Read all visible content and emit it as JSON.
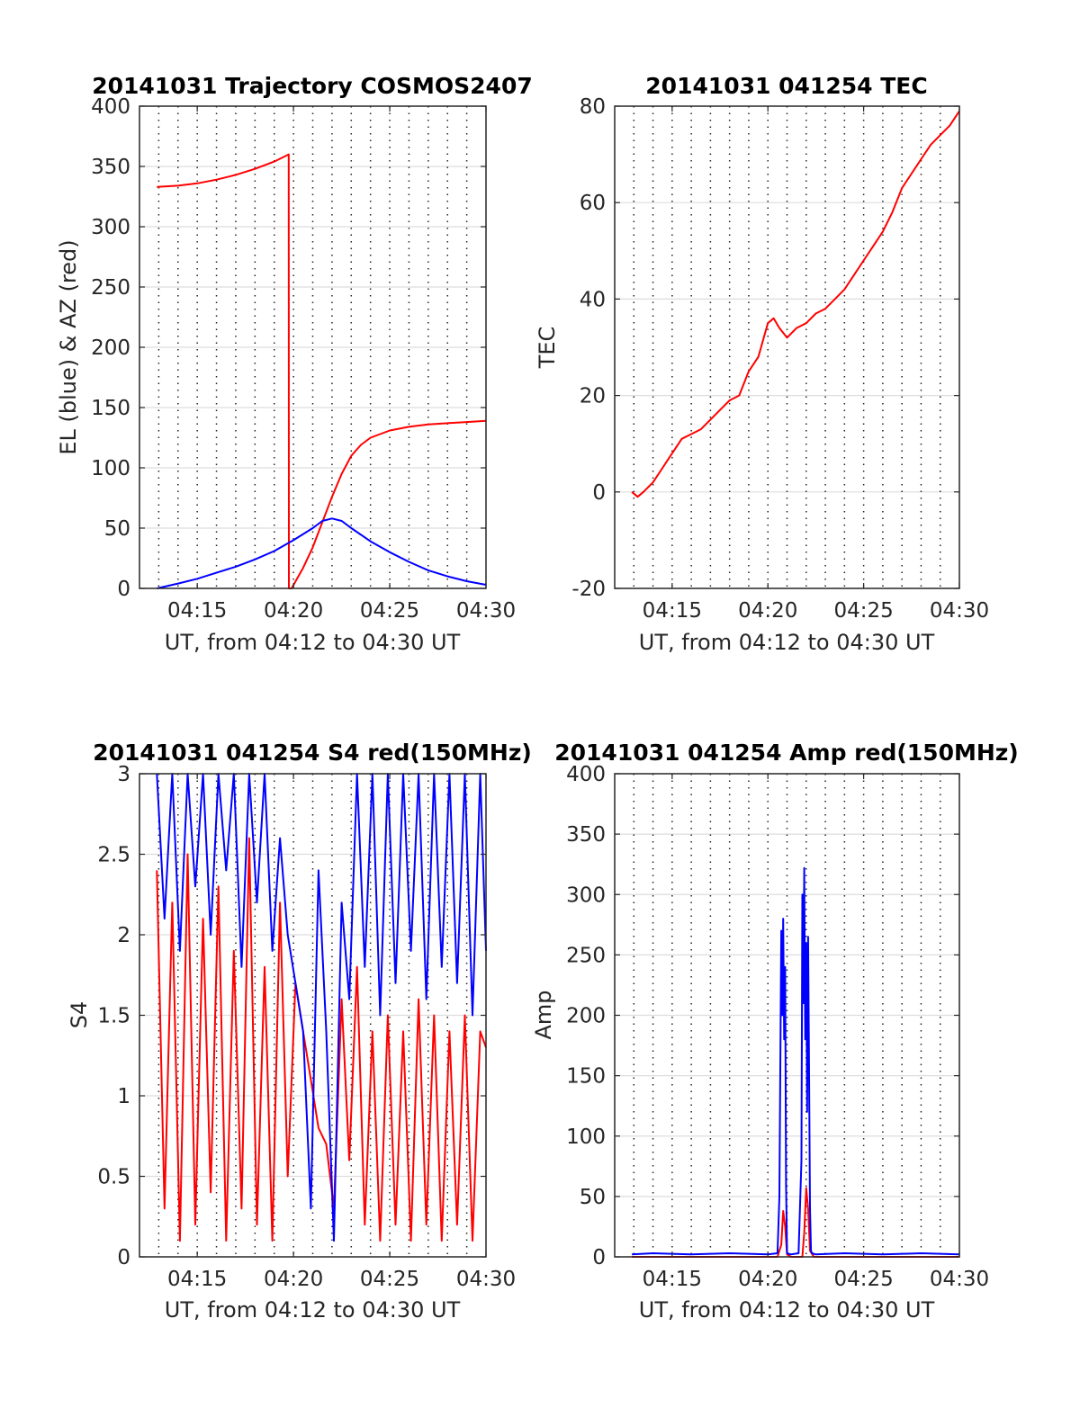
{
  "figure": {
    "background": "#ffffff",
    "line_colors": {
      "red": "#ff0000",
      "blue": "#0000ff"
    }
  },
  "chart_data": [
    {
      "id": "trajectory",
      "type": "line",
      "title": "20141031 Trajectory COSMOS2407",
      "xlabel": "UT, from 04:12 to 04:30 UT",
      "ylabel": "EL (blue) & AZ (red)",
      "x_unit": "minutes after 04:00 UT",
      "xlim": [
        12,
        30
      ],
      "ylim": [
        0,
        400
      ],
      "yticks": [
        0,
        50,
        100,
        150,
        200,
        250,
        300,
        350,
        400
      ],
      "xticks": [
        15,
        20,
        25,
        30
      ],
      "xtick_labels": [
        "04:15",
        "04:20",
        "04:25",
        "04:30"
      ],
      "vgrid_minutes": [
        13,
        14,
        15,
        16,
        17,
        18,
        19,
        20,
        21,
        22,
        23,
        24,
        25,
        26,
        27,
        28,
        29
      ],
      "series": [
        {
          "color": "#ff0000",
          "x": [
            12.9,
            14,
            15,
            16,
            17,
            18,
            19,
            19.75,
            19.76,
            19.9,
            20.5,
            21,
            21.5,
            22,
            22.5,
            23,
            23.5,
            24,
            25,
            26,
            27,
            28,
            29,
            30
          ],
          "y": [
            333,
            334,
            336,
            339,
            343,
            348,
            354,
            360,
            0,
            0,
            17,
            34,
            55,
            76,
            95,
            110,
            119,
            125,
            131,
            134,
            136,
            137,
            138,
            139
          ]
        },
        {
          "color": "#0000ff",
          "x": [
            12.9,
            14,
            15,
            16,
            17,
            18,
            19,
            20,
            21,
            21.5,
            22,
            22.5,
            23,
            24,
            25,
            26,
            27,
            28,
            29,
            30
          ],
          "y": [
            0,
            4,
            8,
            13,
            18,
            24,
            31,
            40,
            50,
            56,
            58,
            56,
            50,
            39,
            30,
            22,
            15,
            10,
            6,
            3
          ]
        }
      ]
    },
    {
      "id": "tec",
      "type": "line",
      "title": "20141031 041254 TEC",
      "xlabel": "UT, from 04:12 to 04:30 UT",
      "ylabel": "TEC",
      "x_unit": "minutes after 04:00 UT",
      "xlim": [
        12,
        30
      ],
      "ylim": [
        -20,
        80
      ],
      "yticks": [
        -20,
        0,
        20,
        40,
        60,
        80
      ],
      "xticks": [
        15,
        20,
        25,
        30
      ],
      "xtick_labels": [
        "04:15",
        "04:20",
        "04:25",
        "04:30"
      ],
      "vgrid_minutes": [
        13,
        14,
        15,
        16,
        17,
        18,
        19,
        20,
        21,
        22,
        23,
        24,
        25,
        26,
        27,
        28,
        29
      ],
      "series": [
        {
          "color": "#ff0000",
          "x": [
            12.9,
            13.2,
            13.5,
            14,
            14.5,
            15,
            15.5,
            16,
            16.5,
            17,
            17.5,
            18,
            18.5,
            19,
            19.5,
            20,
            20.3,
            20.6,
            21,
            21.5,
            22,
            22.5,
            23,
            23.5,
            24,
            24.5,
            25,
            25.5,
            26,
            26.5,
            27,
            27.5,
            28,
            28.5,
            29,
            29.5,
            30
          ],
          "y": [
            0,
            -1,
            0,
            2,
            5,
            8,
            11,
            12,
            13,
            15,
            17,
            19,
            20,
            25,
            28,
            35,
            36,
            34,
            32,
            34,
            35,
            37,
            38,
            40,
            42,
            45,
            48,
            51,
            54,
            58,
            63,
            66,
            69,
            72,
            74,
            76,
            79
          ]
        }
      ]
    },
    {
      "id": "s4",
      "type": "line",
      "title": "20141031 041254 S4 red(150MHz)",
      "xlabel": "UT, from 04:12 to 04:30 UT",
      "ylabel": "S4",
      "x_unit": "minutes after 04:00 UT",
      "xlim": [
        12,
        30
      ],
      "ylim": [
        0,
        3
      ],
      "yticks": [
        0,
        0.5,
        1,
        1.5,
        2,
        2.5,
        3
      ],
      "ytick_labels": [
        "0",
        "0.5",
        "1",
        "1.5",
        "2",
        "2.5",
        "3"
      ],
      "xticks": [
        15,
        20,
        25,
        30
      ],
      "xtick_labels": [
        "04:15",
        "04:20",
        "04:25",
        "04:30"
      ],
      "vgrid_minutes": [
        13,
        14,
        15,
        16,
        17,
        18,
        19,
        20,
        21,
        22,
        23,
        24,
        25,
        26,
        27,
        28,
        29
      ],
      "series": [
        {
          "color": "#ff0000",
          "x": [
            12.9,
            13.3,
            13.7,
            14.1,
            14.5,
            14.9,
            15.3,
            15.7,
            16.1,
            16.5,
            16.9,
            17.3,
            17.7,
            18.1,
            18.5,
            18.9,
            19.3,
            19.7,
            20.1,
            20.5,
            20.9,
            21.3,
            21.7,
            22.1,
            22.5,
            22.9,
            23.3,
            23.7,
            24.1,
            24.5,
            24.9,
            25.3,
            25.7,
            26.1,
            26.5,
            26.9,
            27.3,
            27.7,
            28.1,
            28.5,
            28.9,
            29.3,
            29.7,
            30
          ],
          "y": [
            2.4,
            0.3,
            2.2,
            0.1,
            2.5,
            0.2,
            2.1,
            0.4,
            2.3,
            0.1,
            1.9,
            0.3,
            2.6,
            0.2,
            1.8,
            0.1,
            2.2,
            0.5,
            1.7,
            1.4,
            1.1,
            0.8,
            0.7,
            0.3,
            1.6,
            0.6,
            1.8,
            0.2,
            1.4,
            0.1,
            1.5,
            0.2,
            1.4,
            0.1,
            1.6,
            0.2,
            1.5,
            0.1,
            1.4,
            0.2,
            1.5,
            0.1,
            1.4,
            1.3
          ]
        },
        {
          "color": "#0000ff",
          "x": [
            12.9,
            13.3,
            13.7,
            14.1,
            14.5,
            14.9,
            15.3,
            15.7,
            16.1,
            16.5,
            16.9,
            17.3,
            17.7,
            18.1,
            18.5,
            18.9,
            19.3,
            19.7,
            20.1,
            20.5,
            20.9,
            21.3,
            21.7,
            22.1,
            22.5,
            22.9,
            23.3,
            23.7,
            24.1,
            24.5,
            24.9,
            25.3,
            25.7,
            26.1,
            26.5,
            26.9,
            27.3,
            27.7,
            28.1,
            28.5,
            28.9,
            29.3,
            29.7,
            30
          ],
          "y": [
            3,
            2.1,
            3,
            1.9,
            3,
            2.3,
            3,
            2.0,
            3,
            2.4,
            3,
            1.8,
            3,
            2.2,
            3,
            1.9,
            2.6,
            2.0,
            1.7,
            1.4,
            0.3,
            2.4,
            1.4,
            0.1,
            2.2,
            1.6,
            3,
            1.8,
            3,
            1.5,
            3,
            1.7,
            3,
            1.9,
            3,
            1.6,
            3,
            1.8,
            3,
            1.7,
            3,
            1.5,
            3,
            1.9
          ]
        }
      ]
    },
    {
      "id": "amp",
      "type": "line",
      "title": "20141031 041254 Amp red(150MHz)",
      "xlabel": "UT, from 04:12 to 04:30 UT",
      "ylabel": "Amp",
      "x_unit": "minutes after 04:00 UT",
      "xlim": [
        12,
        30
      ],
      "ylim": [
        0,
        400
      ],
      "yticks": [
        0,
        50,
        100,
        150,
        200,
        250,
        300,
        350,
        400
      ],
      "xticks": [
        15,
        20,
        25,
        30
      ],
      "xtick_labels": [
        "04:15",
        "04:20",
        "04:25",
        "04:30"
      ],
      "vgrid_minutes": [
        13,
        14,
        15,
        16,
        17,
        18,
        19,
        20,
        21,
        22,
        23,
        24,
        25,
        26,
        27,
        28,
        29
      ],
      "series": [
        {
          "color": "#ff0000",
          "x": [
            12.9,
            20.5,
            20.7,
            20.8,
            20.9,
            21.0,
            21.2,
            21.8,
            21.9,
            22.0,
            22.1,
            22.2,
            22.4,
            30
          ],
          "y": [
            0,
            0,
            10,
            38,
            25,
            2,
            0,
            0,
            20,
            57,
            40,
            5,
            0,
            0
          ]
        },
        {
          "color": "#0000ff",
          "x": [
            12.9,
            14,
            16,
            18,
            20,
            20.5,
            20.6,
            20.7,
            20.75,
            20.8,
            20.85,
            20.9,
            20.95,
            21.0,
            21.2,
            21.6,
            21.75,
            21.8,
            21.85,
            21.9,
            21.95,
            22.0,
            22.05,
            22.1,
            22.15,
            22.2,
            22.25,
            22.3,
            22.5,
            24,
            26,
            28,
            30
          ],
          "y": [
            2,
            3,
            2,
            3,
            2,
            3,
            50,
            270,
            200,
            280,
            180,
            240,
            60,
            3,
            2,
            3,
            80,
            300,
            210,
            322,
            180,
            260,
            120,
            265,
            150,
            40,
            5,
            3,
            2,
            3,
            2,
            3,
            2
          ]
        }
      ]
    }
  ]
}
